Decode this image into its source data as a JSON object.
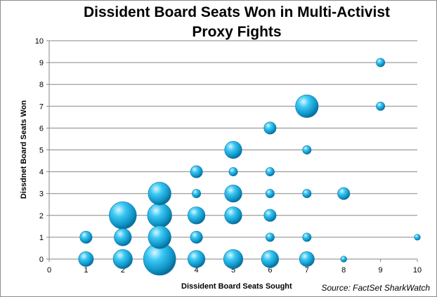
{
  "chart_data": {
    "type": "scatter",
    "title_lines": [
      "Dissident Board Seats Won in Multi-Activist",
      "Proxy Fights"
    ],
    "xlabel": "Dissident Board Seats Sought",
    "ylabel": "Dissdnet Board Seats Won",
    "source": "Source: FactSet SharkWatch",
    "xlim": [
      0,
      10
    ],
    "ylim": [
      0,
      10
    ],
    "xticks": [
      "0",
      "1",
      "2",
      "3",
      "4",
      "5",
      "6",
      "7",
      "8",
      "9",
      "10"
    ],
    "yticks": [
      "0",
      "1",
      "2",
      "3",
      "4",
      "5",
      "6",
      "7",
      "8",
      "9",
      "10"
    ],
    "grid": "horizontal",
    "bubble_color": "#1aaee0",
    "points": [
      {
        "x": 1,
        "y": 0,
        "size": 3
      },
      {
        "x": 1,
        "y": 1,
        "size": 2
      },
      {
        "x": 2,
        "y": 0,
        "size": 5
      },
      {
        "x": 2,
        "y": 1,
        "size": 4
      },
      {
        "x": 2,
        "y": 2,
        "size": 10
      },
      {
        "x": 3,
        "y": 0,
        "size": 14
      },
      {
        "x": 3,
        "y": 1,
        "size": 7
      },
      {
        "x": 3,
        "y": 2,
        "size": 8
      },
      {
        "x": 3,
        "y": 3,
        "size": 7
      },
      {
        "x": 4,
        "y": 0,
        "size": 4
      },
      {
        "x": 4,
        "y": 1,
        "size": 2
      },
      {
        "x": 4,
        "y": 2,
        "size": 4
      },
      {
        "x": 4,
        "y": 3,
        "size": 1
      },
      {
        "x": 4,
        "y": 4,
        "size": 2
      },
      {
        "x": 5,
        "y": 0,
        "size": 5
      },
      {
        "x": 5,
        "y": 2,
        "size": 4
      },
      {
        "x": 5,
        "y": 3,
        "size": 4
      },
      {
        "x": 5,
        "y": 4,
        "size": 1
      },
      {
        "x": 5,
        "y": 5,
        "size": 4
      },
      {
        "x": 6,
        "y": 0,
        "size": 4
      },
      {
        "x": 6,
        "y": 1,
        "size": 1
      },
      {
        "x": 6,
        "y": 2,
        "size": 2
      },
      {
        "x": 6,
        "y": 3,
        "size": 1
      },
      {
        "x": 6,
        "y": 4,
        "size": 1
      },
      {
        "x": 6,
        "y": 6,
        "size": 2
      },
      {
        "x": 7,
        "y": 0,
        "size": 3
      },
      {
        "x": 7,
        "y": 1,
        "size": 1
      },
      {
        "x": 7,
        "y": 3,
        "size": 1
      },
      {
        "x": 7,
        "y": 5,
        "size": 1
      },
      {
        "x": 7,
        "y": 7,
        "size": 7
      },
      {
        "x": 8,
        "y": 0,
        "size": 0.5
      },
      {
        "x": 8,
        "y": 3,
        "size": 2
      },
      {
        "x": 9,
        "y": 7,
        "size": 1
      },
      {
        "x": 9,
        "y": 9,
        "size": 1
      },
      {
        "x": 10,
        "y": 1,
        "size": 0.5
      }
    ]
  }
}
